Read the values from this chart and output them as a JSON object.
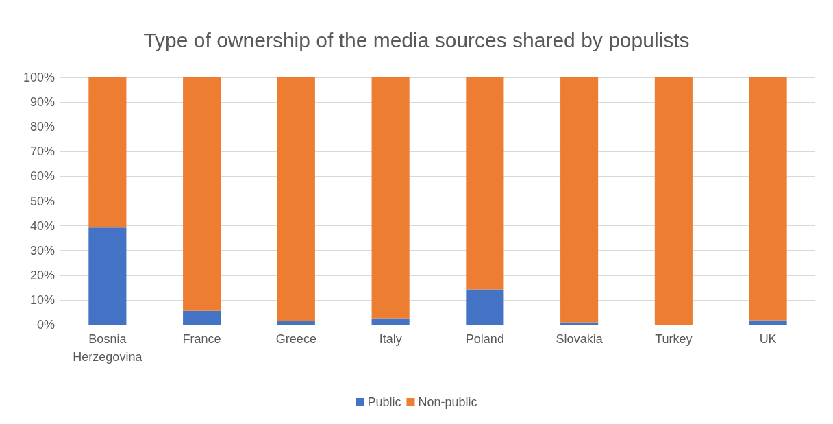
{
  "chart_data": {
    "type": "bar",
    "stacked": true,
    "title": "Type of ownership of the media sources shared by populists",
    "categories": [
      "Bosnia\nHerzegovina",
      "France",
      "Greece",
      "Italy",
      "Poland",
      "Slovakia",
      "Turkey",
      "UK"
    ],
    "series": [
      {
        "name": "Public",
        "color": "#4472c4",
        "values": [
          39.3,
          5.6,
          1.6,
          2.6,
          14.3,
          1.0,
          0,
          1.8
        ]
      },
      {
        "name": "Non-public",
        "color": "#ed7d31",
        "values": [
          60.7,
          94.4,
          98.4,
          97.4,
          85.7,
          99.0,
          100,
          98.2
        ]
      }
    ],
    "ylim": [
      0,
      100
    ],
    "yticks": [
      {
        "value": 0,
        "label": "0%"
      },
      {
        "value": 10,
        "label": "10%"
      },
      {
        "value": 20,
        "label": "20%"
      },
      {
        "value": 30,
        "label": "30%"
      },
      {
        "value": 40,
        "label": "40%"
      },
      {
        "value": 50,
        "label": "50%"
      },
      {
        "value": 60,
        "label": "60%"
      },
      {
        "value": 70,
        "label": "70%"
      },
      {
        "value": 80,
        "label": "80%"
      },
      {
        "value": 90,
        "label": "90%"
      },
      {
        "value": 100,
        "label": "100%"
      }
    ],
    "grid": "y",
    "legend": "bottom"
  }
}
